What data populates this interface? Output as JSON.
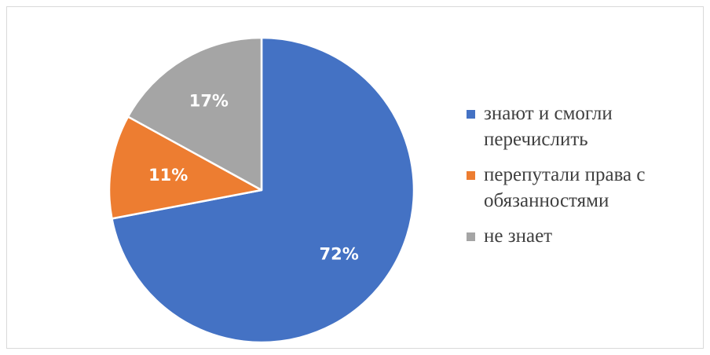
{
  "chart_data": {
    "type": "pie",
    "title": "",
    "start_angle_deg": 0,
    "direction": "clockwise",
    "legend_position": "right",
    "slices": [
      {
        "name": "знают и смогли перечислить",
        "value": 72,
        "label": "72%",
        "color": "#4472C4"
      },
      {
        "name": "перепутали права с обязанностями",
        "value": 11,
        "label": "11%",
        "color": "#ED7D31"
      },
      {
        "name": "не знает",
        "value": 17,
        "label": "17%",
        "color": "#A5A5A5"
      }
    ]
  }
}
